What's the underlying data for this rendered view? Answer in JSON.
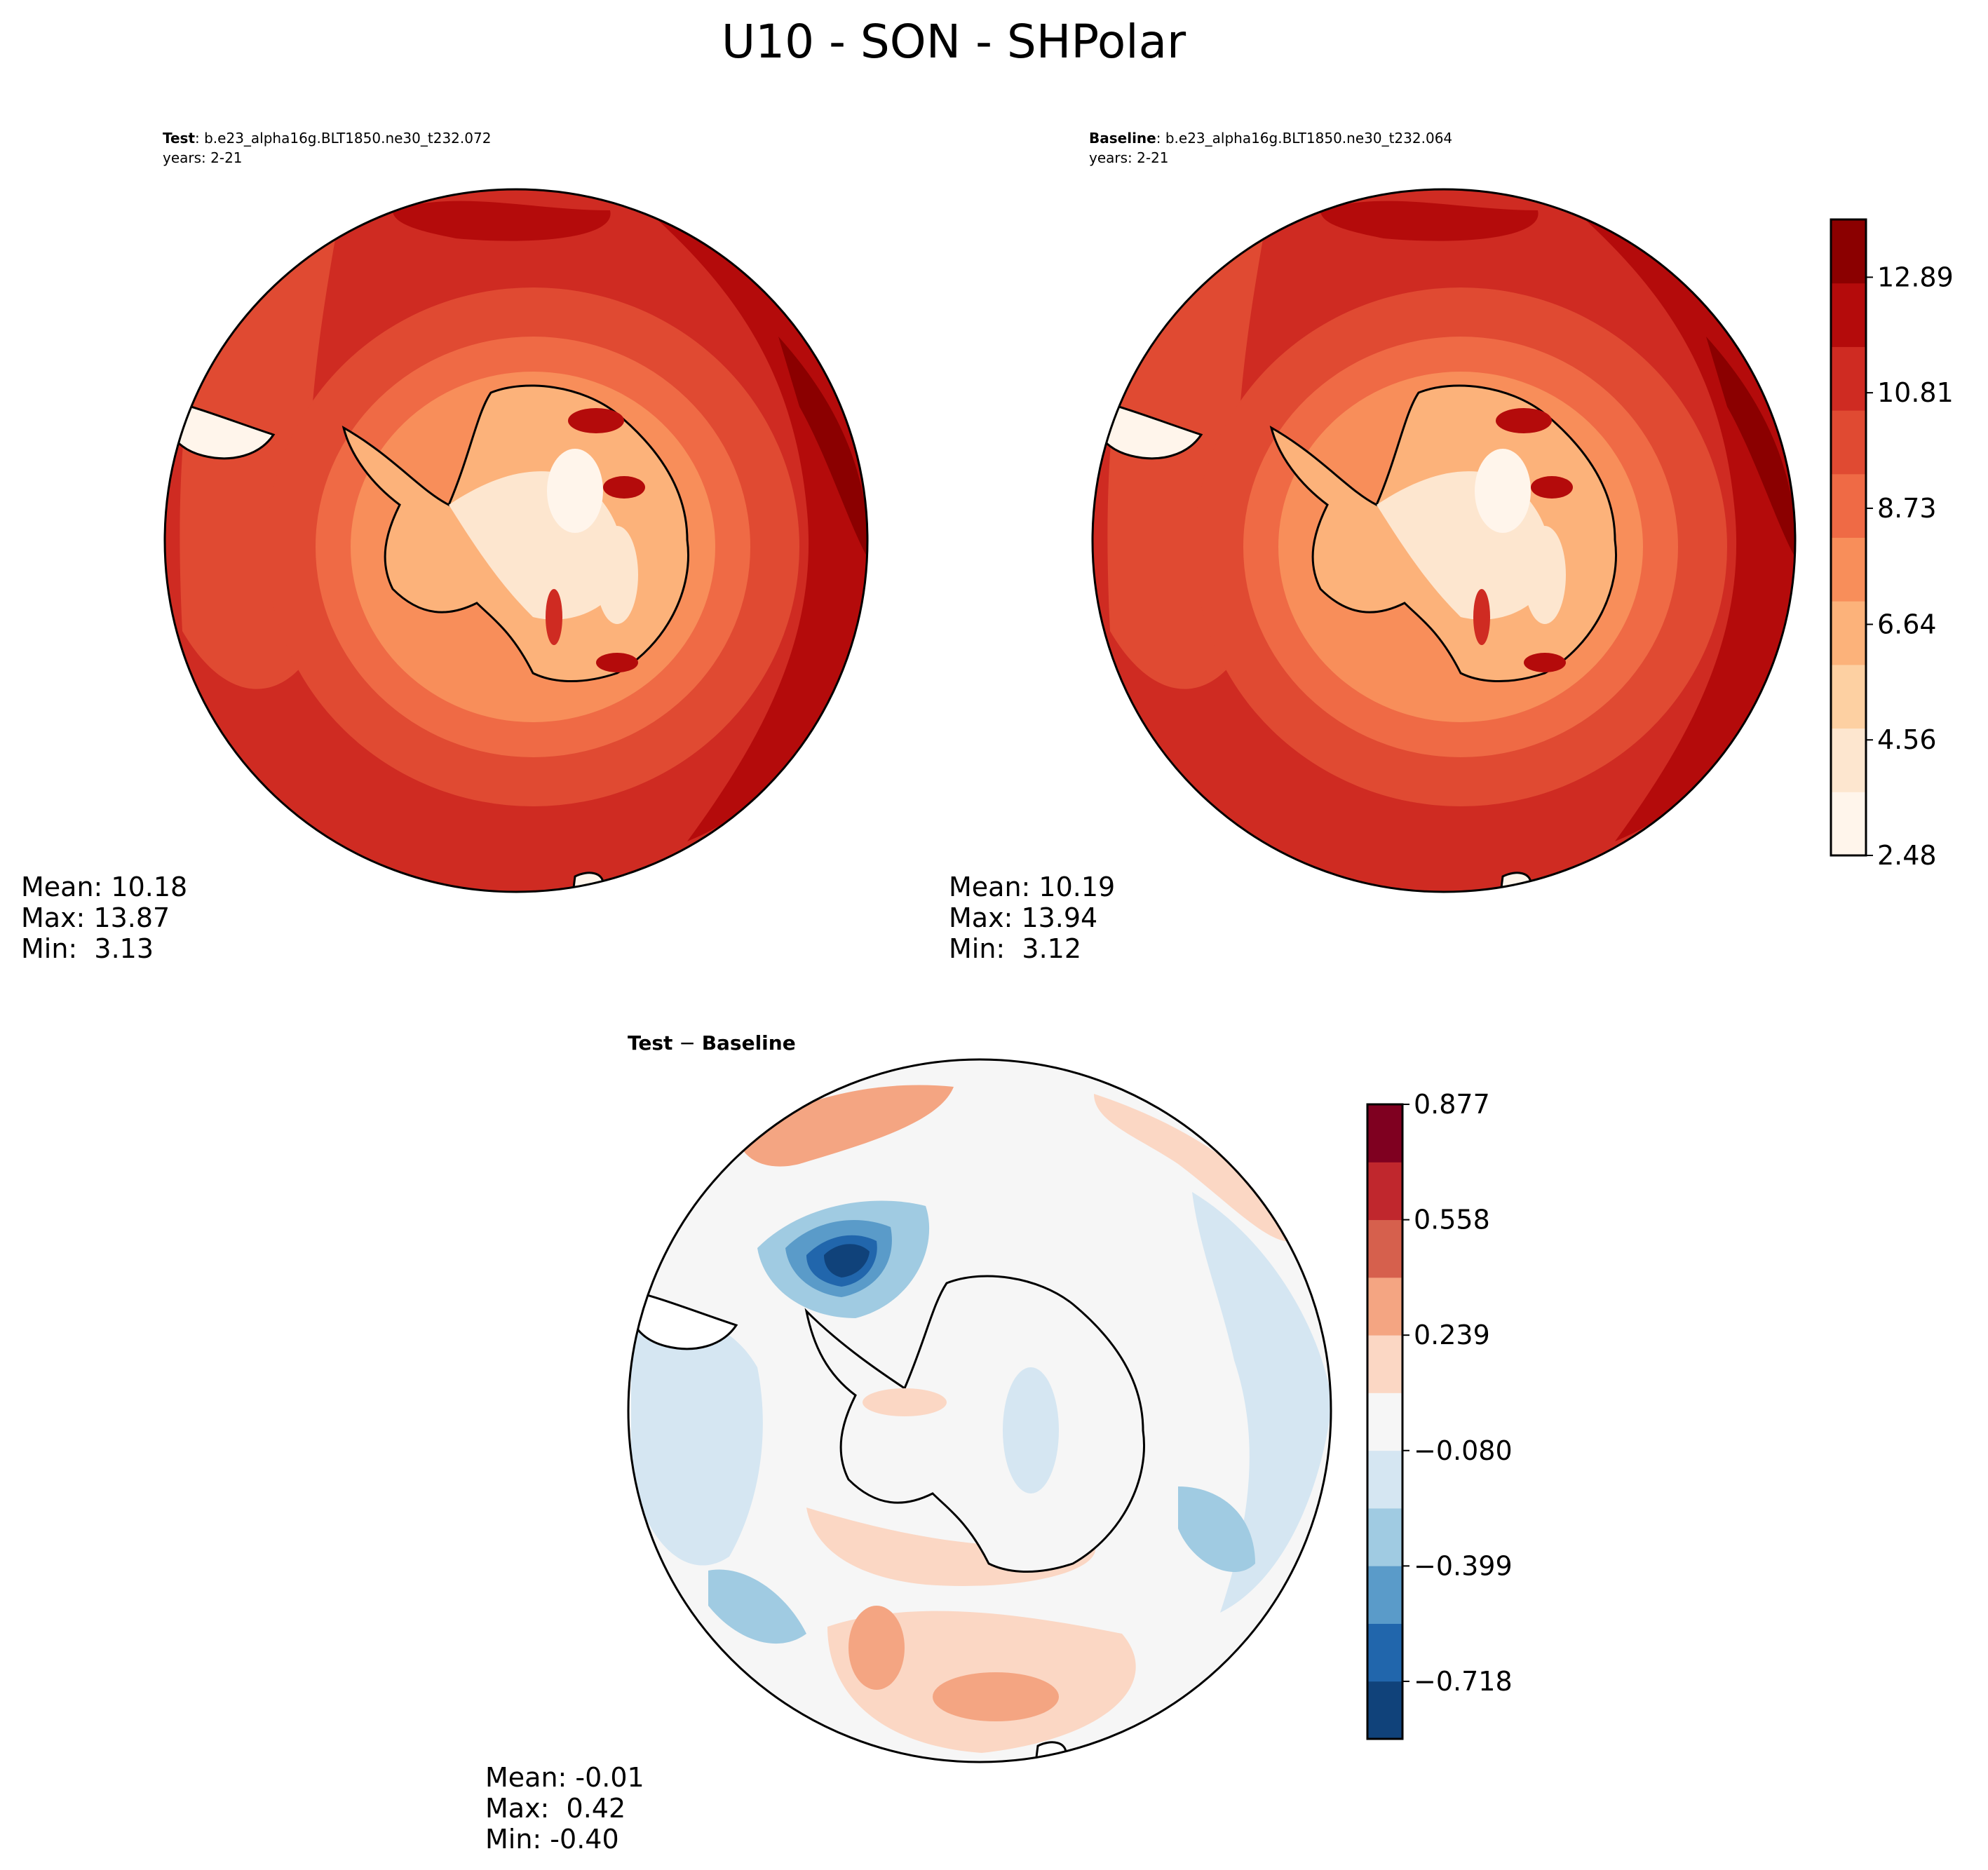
{
  "figure": {
    "title": "U10 - SON - SHPolar"
  },
  "colors": {
    "abs_levels": [
      "#fff5eb",
      "#fde6cf",
      "#fdd0a2",
      "#fcb27a",
      "#f88e5a",
      "#ef6a45",
      "#e04a32",
      "#cf2b22",
      "#b40b0b",
      "#8b0000"
    ],
    "diff_levels": [
      "#10427a",
      "#2166ac",
      "#5a9bc9",
      "#a0cbe2",
      "#d5e6f2",
      "#f6f6f6",
      "#fbd7c4",
      "#f4a582",
      "#d6604d",
      "#c0272d",
      "#7f0020"
    ],
    "land": "#ffffff",
    "coast": "#000000"
  },
  "panels": [
    {
      "id": "test",
      "label_bold": "Test",
      "label_rest": ": b.e23_alpha16g.BLT1850.ne30_t232.072",
      "years": "years: 2-21",
      "stats": [
        "Mean: 10.18",
        "Max: 13.87",
        "Min:  3.13"
      ]
    },
    {
      "id": "baseline",
      "label_bold": "Baseline",
      "label_rest": ": b.e23_alpha16g.BLT1850.ne30_t232.064",
      "years": "years: 2-21",
      "stats": [
        "Mean: 10.19",
        "Max: 13.94",
        "Min:  3.12"
      ]
    },
    {
      "id": "diff",
      "label_bold": "Test",
      "label_sep": " − ",
      "label_bold2": "Baseline",
      "stats": [
        "Mean: -0.01",
        "Max:  0.42",
        "Min: -0.40"
      ]
    }
  ],
  "chart_data": [
    {
      "type": "heatmap",
      "projection": "south-polar-stereographic",
      "name": "Test",
      "value_stats": {
        "mean": 10.18,
        "max": 13.87,
        "min": 3.13
      },
      "colorbar": {
        "min": 2.48,
        "max": 13.93,
        "levels": 11,
        "ticks": [
          "2.48",
          "4.56",
          "6.64",
          "8.73",
          "10.81",
          "12.89"
        ],
        "tick_values": [
          2.48,
          4.56,
          6.64,
          8.73,
          10.81,
          12.89
        ]
      }
    },
    {
      "type": "heatmap",
      "projection": "south-polar-stereographic",
      "name": "Baseline",
      "value_stats": {
        "mean": 10.19,
        "max": 13.94,
        "min": 3.12
      },
      "colorbar": {
        "min": 2.48,
        "max": 13.93,
        "levels": 11,
        "ticks": [
          "2.48",
          "4.56",
          "6.64",
          "8.73",
          "10.81",
          "12.89"
        ],
        "tick_values": [
          2.48,
          4.56,
          6.64,
          8.73,
          10.81,
          12.89
        ]
      }
    },
    {
      "type": "heatmap",
      "projection": "south-polar-stereographic",
      "name": "Test − Baseline",
      "value_stats": {
        "mean": -0.01,
        "max": 0.42,
        "min": -0.4
      },
      "colorbar": {
        "min": -0.877,
        "max": 0.877,
        "levels": 12,
        "ticks": [
          "−0.718",
          "−0.399",
          "−0.080",
          "0.239",
          "0.558",
          "0.877"
        ],
        "tick_values": [
          -0.718,
          -0.399,
          -0.08,
          0.239,
          0.558,
          0.877
        ]
      }
    }
  ]
}
